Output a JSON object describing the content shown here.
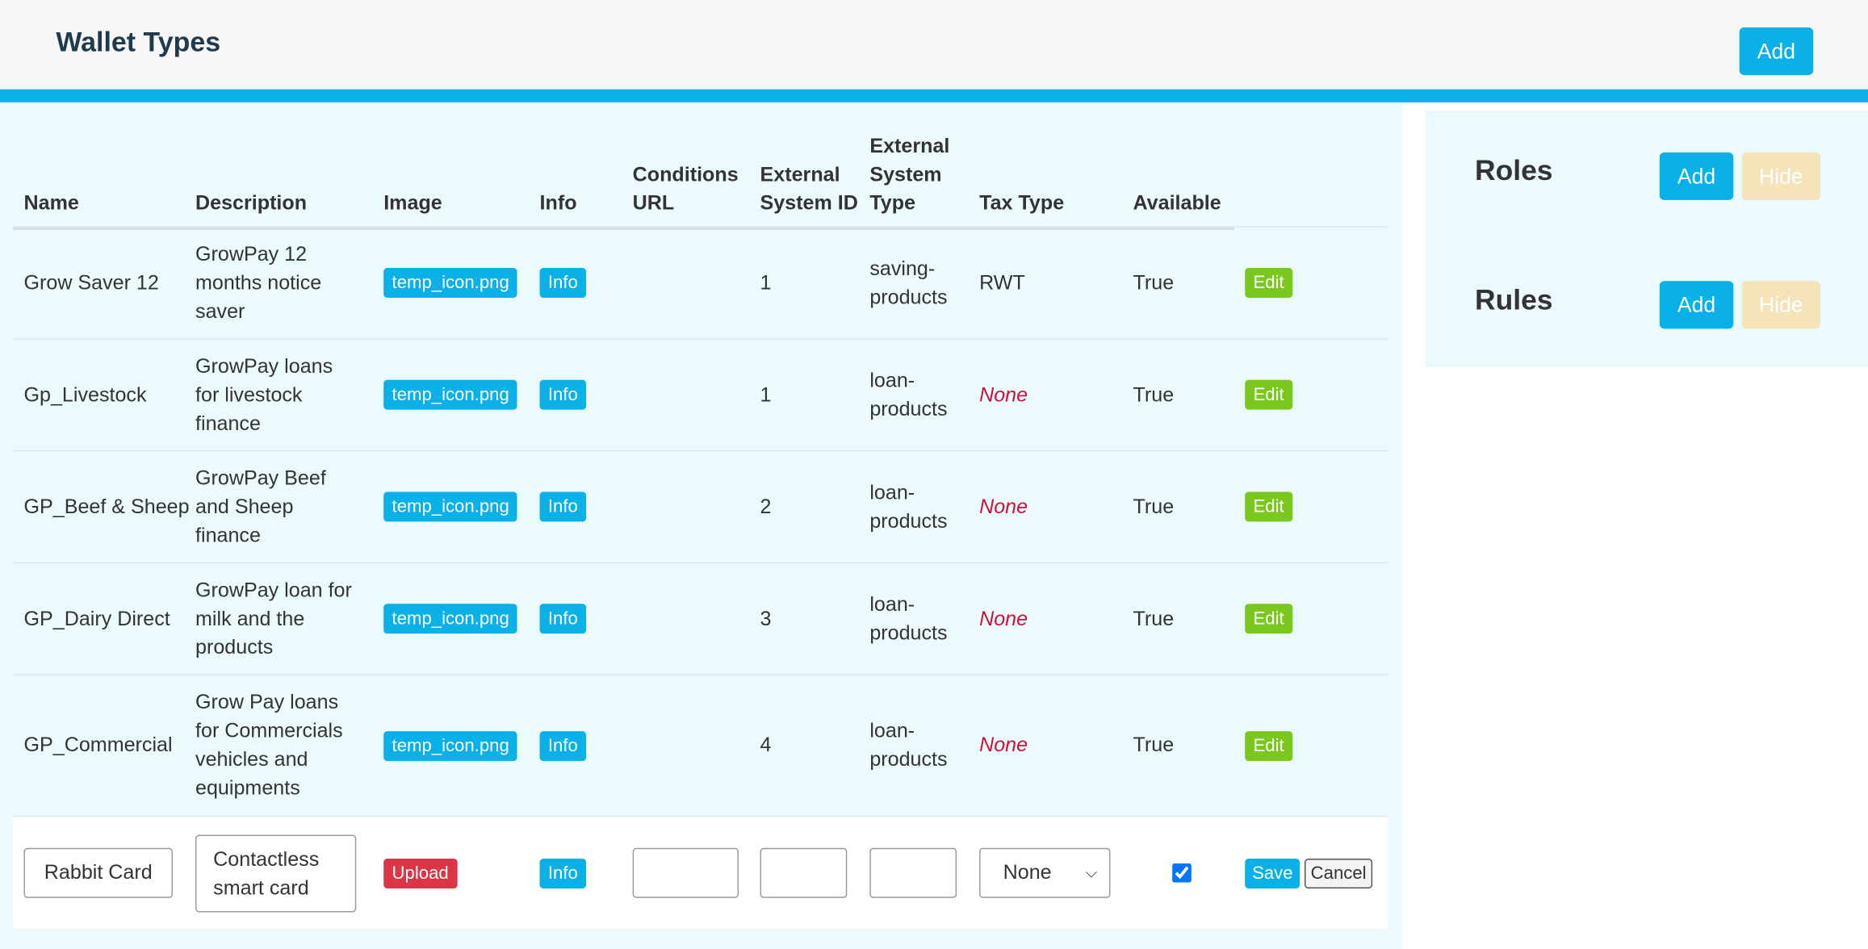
{
  "header": {
    "title": "Wallet Types",
    "add_button": "Add"
  },
  "table": {
    "columns": [
      "Name",
      "Description",
      "Image",
      "Info",
      "Conditions URL",
      "External System ID",
      "External System Type",
      "Tax Type",
      "Available"
    ],
    "rows": [
      {
        "name": "Grow Saver 12",
        "description": "GrowPay 12 months notice saver",
        "image": "temp_icon.png",
        "info": "Info",
        "external_system_id": "1",
        "external_system_type": "saving-products",
        "tax_type": "RWT",
        "available": "True",
        "action": "Edit"
      },
      {
        "name": "Gp_Livestock",
        "description": "GrowPay loans for livestock finance",
        "image": "temp_icon.png",
        "info": "Info",
        "external_system_id": "1",
        "external_system_type": "loan-products",
        "tax_type": "None",
        "available": "True",
        "action": "Edit"
      },
      {
        "name": "GP_Beef & Sheep",
        "description": "GrowPay Beef and Sheep finance",
        "image": "temp_icon.png",
        "info": "Info",
        "external_system_id": "2",
        "external_system_type": "loan-products",
        "tax_type": "None",
        "available": "True",
        "action": "Edit"
      },
      {
        "name": "GP_Dairy Direct",
        "description": "GrowPay loan for milk and the products",
        "image": "temp_icon.png",
        "info": "Info",
        "external_system_id": "3",
        "external_system_type": "loan-products",
        "tax_type": "None",
        "available": "True",
        "action": "Edit"
      },
      {
        "name": "GP_Commercial",
        "description": "Grow Pay loans for Commercials vehicles and equipments",
        "image": "temp_icon.png",
        "info": "Info",
        "external_system_id": "4",
        "external_system_type": "loan-products",
        "tax_type": "None",
        "available": "True",
        "action": "Edit"
      }
    ],
    "edit_row": {
      "name": "Rabbit Card",
      "description": "Contactless smart card",
      "upload": "Upload",
      "info": "Info",
      "tax_type": "None",
      "available_checked": true,
      "save": "Save",
      "cancel": "Cancel"
    }
  },
  "sidebar": {
    "roles": {
      "title": "Roles",
      "add": "Add",
      "hide": "Hide"
    },
    "rules": {
      "title": "Rules",
      "add": "Add",
      "hide": "Hide"
    }
  }
}
